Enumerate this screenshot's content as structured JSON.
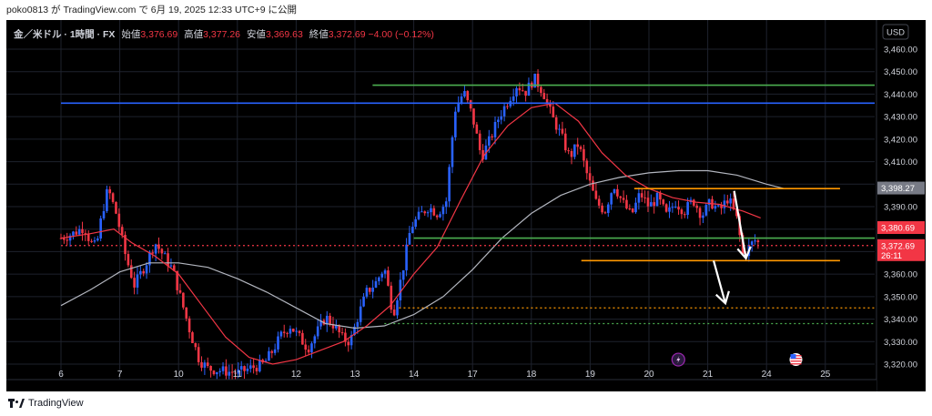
{
  "attribution": "poko0813 が TradingView.com で 6月 19, 2025 12:33 UTC+9 に公開",
  "footer_brand": "TradingView",
  "legend": {
    "symbol": "金／米ドル · 1時間 · FX",
    "open_label": "始値",
    "open": "3,376.69",
    "high_label": "高値",
    "high": "3,377.26",
    "low_label": "安値",
    "low": "3,369.63",
    "close_label": "終値",
    "close": "3,372.69",
    "change": "−4.00 (−0.12%)"
  },
  "currency_badge": "USD",
  "price_tags": [
    {
      "text": "3,398.27",
      "bg": "#787b86",
      "fg": "#ffffff"
    },
    {
      "text": "3,380.69",
      "bg": "#f23645",
      "fg": "#ffffff"
    },
    {
      "text": "3,372.69",
      "bg": "#f23645",
      "fg": "#ffffff",
      "sub": "26:11"
    }
  ],
  "colors": {
    "background": "#000000",
    "up": "#2962ff",
    "down": "#f23645",
    "ma_fast": "#f23645",
    "ma_slow": "#b2b5be",
    "blue_line": "#2962ff",
    "green_line": "#4caf50",
    "orange_line": "#ff9800"
  },
  "chart_data": {
    "type": "candlestick",
    "symbol": "XAU/USD",
    "timeframe": "1H",
    "ylim": [
      3313,
      3468
    ],
    "y_ticks": [
      3320,
      3330,
      3340,
      3350,
      3360,
      3370,
      3380,
      3390,
      3400,
      3410,
      3420,
      3430,
      3440,
      3450,
      3460
    ],
    "y_tick_labels": [
      "3,320.00",
      "3,330.00",
      "3,340.00",
      "3,350.00",
      "3,360.00",
      "3,370.00",
      "3,380.00",
      "3,390.00",
      "3,400.00",
      "3,410.00",
      "3,420.00",
      "3,430.00",
      "3,440.00",
      "3,450.00",
      "3,460.00"
    ],
    "x_labels": [
      "6",
      "7",
      "10",
      "11",
      "12",
      "13",
      "14",
      "17",
      "18",
      "19",
      "20",
      "21",
      "24",
      "25"
    ],
    "x_label_index": [
      0,
      1,
      2,
      3,
      4,
      5,
      6,
      7,
      8,
      9,
      10,
      11,
      12,
      13
    ],
    "price_path": [
      [
        0.0,
        3376
      ],
      [
        0.2,
        3378
      ],
      [
        0.4,
        3381
      ],
      [
        0.5,
        3374
      ],
      [
        0.6,
        3372
      ],
      [
        0.7,
        3387
      ],
      [
        0.8,
        3398
      ],
      [
        0.95,
        3386
      ],
      [
        1.1,
        3368
      ],
      [
        1.25,
        3355
      ],
      [
        1.45,
        3365
      ],
      [
        1.6,
        3374
      ],
      [
        1.75,
        3368
      ],
      [
        1.9,
        3362
      ],
      [
        2.05,
        3348
      ],
      [
        2.2,
        3334
      ],
      [
        2.35,
        3322
      ],
      [
        2.5,
        3318
      ],
      [
        2.75,
        3317
      ],
      [
        3.0,
        3316
      ],
      [
        3.2,
        3318
      ],
      [
        3.45,
        3320
      ],
      [
        3.6,
        3326
      ],
      [
        3.75,
        3333
      ],
      [
        3.9,
        3337
      ],
      [
        4.05,
        3332
      ],
      [
        4.2,
        3327
      ],
      [
        4.35,
        3334
      ],
      [
        4.5,
        3341
      ],
      [
        4.65,
        3337
      ],
      [
        4.8,
        3331
      ],
      [
        4.92,
        3330
      ],
      [
        5.05,
        3341
      ],
      [
        5.2,
        3352
      ],
      [
        5.35,
        3356
      ],
      [
        5.5,
        3363
      ],
      [
        5.65,
        3342
      ],
      [
        5.8,
        3360
      ],
      [
        5.95,
        3381
      ],
      [
        6.1,
        3386
      ],
      [
        6.25,
        3390
      ],
      [
        6.4,
        3387
      ],
      [
        6.55,
        3392
      ],
      [
        6.7,
        3433
      ],
      [
        6.85,
        3441
      ],
      [
        7.0,
        3430
      ],
      [
        7.15,
        3412
      ],
      [
        7.3,
        3420
      ],
      [
        7.45,
        3430
      ],
      [
        7.6,
        3437
      ],
      [
        7.75,
        3444
      ],
      [
        7.9,
        3441
      ],
      [
        8.05,
        3447
      ],
      [
        8.2,
        3441
      ],
      [
        8.35,
        3430
      ],
      [
        8.5,
        3422
      ],
      [
        8.65,
        3412
      ],
      [
        8.8,
        3418
      ],
      [
        8.95,
        3404
      ],
      [
        9.1,
        3392
      ],
      [
        9.25,
        3388
      ],
      [
        9.4,
        3400
      ],
      [
        9.55,
        3392
      ],
      [
        9.7,
        3386
      ],
      [
        9.85,
        3396
      ],
      [
        10.0,
        3390
      ],
      [
        10.15,
        3394
      ],
      [
        10.3,
        3386
      ],
      [
        10.45,
        3392
      ],
      [
        10.6,
        3388
      ],
      [
        10.75,
        3393
      ],
      [
        10.9,
        3386
      ],
      [
        11.05,
        3392
      ],
      [
        11.2,
        3388
      ],
      [
        11.35,
        3394
      ],
      [
        11.5,
        3384
      ],
      [
        11.6,
        3368
      ],
      [
        11.7,
        3372
      ],
      [
        11.8,
        3375
      ],
      [
        11.9,
        3373
      ]
    ],
    "ma_fast": [
      [
        0.0,
        3376
      ],
      [
        0.5,
        3378
      ],
      [
        0.9,
        3380
      ],
      [
        1.2,
        3374
      ],
      [
        1.6,
        3368
      ],
      [
        2.0,
        3360
      ],
      [
        2.4,
        3346
      ],
      [
        2.8,
        3332
      ],
      [
        3.2,
        3323
      ],
      [
        3.6,
        3320
      ],
      [
        4.0,
        3322
      ],
      [
        4.4,
        3326
      ],
      [
        4.8,
        3330
      ],
      [
        5.2,
        3337
      ],
      [
        5.6,
        3346
      ],
      [
        6.0,
        3360
      ],
      [
        6.4,
        3372
      ],
      [
        6.8,
        3393
      ],
      [
        7.2,
        3413
      ],
      [
        7.6,
        3426
      ],
      [
        8.0,
        3434
      ],
      [
        8.4,
        3436
      ],
      [
        8.8,
        3428
      ],
      [
        9.2,
        3414
      ],
      [
        9.6,
        3404
      ],
      [
        10.0,
        3398
      ],
      [
        10.4,
        3394
      ],
      [
        10.8,
        3392
      ],
      [
        11.2,
        3391
      ],
      [
        11.6,
        3388
      ],
      [
        11.9,
        3385
      ]
    ],
    "ma_slow": [
      [
        0.0,
        3346
      ],
      [
        0.5,
        3353
      ],
      [
        1.0,
        3361
      ],
      [
        1.5,
        3365
      ],
      [
        2.0,
        3365
      ],
      [
        2.5,
        3363
      ],
      [
        3.0,
        3358
      ],
      [
        3.5,
        3352
      ],
      [
        4.0,
        3345
      ],
      [
        4.5,
        3338
      ],
      [
        5.0,
        3336
      ],
      [
        5.5,
        3337
      ],
      [
        6.0,
        3342
      ],
      [
        6.5,
        3350
      ],
      [
        7.0,
        3362
      ],
      [
        7.5,
        3376
      ],
      [
        8.0,
        3387
      ],
      [
        8.5,
        3395
      ],
      [
        9.0,
        3400
      ],
      [
        9.5,
        3403
      ],
      [
        10.0,
        3405
      ],
      [
        10.5,
        3406
      ],
      [
        11.0,
        3406
      ],
      [
        11.5,
        3404
      ],
      [
        12.0,
        3400
      ],
      [
        12.3,
        3398
      ]
    ],
    "levels": [
      {
        "kind": "solid",
        "color": "blue",
        "y": 3436,
        "x_from": 0,
        "x_to": 16
      },
      {
        "kind": "solid",
        "color": "green",
        "y": 3444,
        "x_from": 5.3,
        "x_to": 16
      },
      {
        "kind": "solid",
        "color": "orange",
        "y": 3398,
        "x_from": 9.75,
        "x_to": 13.25
      },
      {
        "kind": "solid",
        "color": "green",
        "y": 3376,
        "x_from": 6.0,
        "x_to": 16
      },
      {
        "kind": "solid",
        "color": "orange",
        "y": 3366,
        "x_from": 8.85,
        "x_to": 13.25
      },
      {
        "kind": "dotted",
        "color": "red",
        "y": 3372.7,
        "x_from": 0,
        "x_to": 16
      },
      {
        "kind": "dotted",
        "color": "orange",
        "y": 3345,
        "x_from": 5.75,
        "x_to": 16
      },
      {
        "kind": "dotted",
        "color": "green",
        "y": 3338,
        "x_from": 5.5,
        "x_to": 16
      }
    ],
    "arrows": [
      {
        "from": [
          11.45,
          3397
        ],
        "to": [
          11.65,
          3367
        ]
      },
      {
        "from": [
          11.1,
          3366
        ],
        "to": [
          11.3,
          3347
        ]
      }
    ],
    "events": [
      {
        "icon": "lightning-icon",
        "x": 10.5,
        "y": 3322
      },
      {
        "icon": "us-flag-icon",
        "x": 12.5,
        "y": 3322
      }
    ]
  }
}
